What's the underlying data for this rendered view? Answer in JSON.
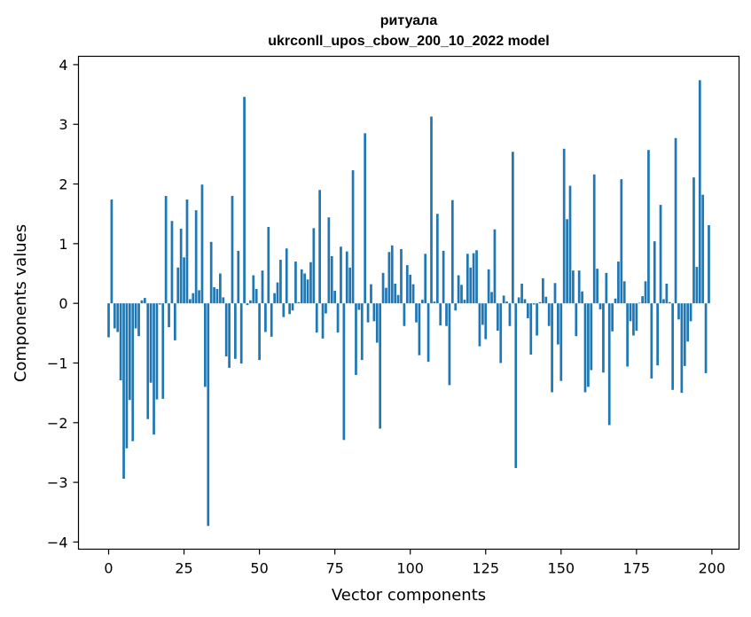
{
  "chart_data": {
    "type": "bar",
    "title_line1": "ритуала",
    "title_line2": "ukrconll_upos_cbow_200_10_2022 model",
    "xlabel": "Vector components",
    "ylabel": "Components values",
    "xlim": [
      -10,
      209
    ],
    "ylim": [
      -4.12,
      4.14
    ],
    "xticks": [
      0,
      25,
      50,
      75,
      100,
      125,
      150,
      175,
      200
    ],
    "yticks": [
      -4,
      -3,
      -2,
      -1,
      0,
      1,
      2,
      3,
      4
    ],
    "xtick_labels": [
      "0",
      "25",
      "50",
      "75",
      "100",
      "125",
      "150",
      "175",
      "200"
    ],
    "ytick_labels": [
      "−4",
      "−3",
      "−2",
      "−1",
      "0",
      "1",
      "2",
      "3",
      "4"
    ],
    "grid": false,
    "bar_color": "#1f77b4",
    "x": [
      0,
      1,
      2,
      3,
      4,
      5,
      6,
      7,
      8,
      9,
      10,
      11,
      12,
      13,
      14,
      15,
      16,
      17,
      18,
      19,
      20,
      21,
      22,
      23,
      24,
      25,
      26,
      27,
      28,
      29,
      30,
      31,
      32,
      33,
      34,
      35,
      36,
      37,
      38,
      39,
      40,
      41,
      42,
      43,
      44,
      45,
      46,
      47,
      48,
      49,
      50,
      51,
      52,
      53,
      54,
      55,
      56,
      57,
      58,
      59,
      60,
      61,
      62,
      63,
      64,
      65,
      66,
      67,
      68,
      69,
      70,
      71,
      72,
      73,
      74,
      75,
      76,
      77,
      78,
      79,
      80,
      81,
      82,
      83,
      84,
      85,
      86,
      87,
      88,
      89,
      90,
      91,
      92,
      93,
      94,
      95,
      96,
      97,
      98,
      99,
      100,
      101,
      102,
      103,
      104,
      105,
      106,
      107,
      108,
      109,
      110,
      111,
      112,
      113,
      114,
      115,
      116,
      117,
      118,
      119,
      120,
      121,
      122,
      123,
      124,
      125,
      126,
      127,
      128,
      129,
      130,
      131,
      132,
      133,
      134,
      135,
      136,
      137,
      138,
      139,
      140,
      141,
      142,
      143,
      144,
      145,
      146,
      147,
      148,
      149,
      150,
      151,
      152,
      153,
      154,
      155,
      156,
      157,
      158,
      159,
      160,
      161,
      162,
      163,
      164,
      165,
      166,
      167,
      168,
      169,
      170,
      171,
      172,
      173,
      174,
      175,
      176,
      177,
      178,
      179,
      180,
      181,
      182,
      183,
      184,
      185,
      186,
      187,
      188,
      189,
      190,
      191,
      192,
      193,
      194,
      195,
      196,
      197,
      198,
      199
    ],
    "values": [
      -0.57,
      1.74,
      -0.42,
      -0.48,
      -1.29,
      -2.94,
      -2.43,
      -1.62,
      -2.31,
      -0.42,
      -0.55,
      0.05,
      0.09,
      -1.94,
      -1.33,
      -2.2,
      -1.61,
      -0.02,
      -1.6,
      1.8,
      -0.4,
      1.38,
      -0.62,
      0.6,
      1.25,
      0.77,
      1.74,
      0.07,
      0.17,
      1.56,
      0.22,
      1.99,
      -1.4,
      -3.73,
      1.03,
      0.27,
      0.24,
      0.5,
      0.1,
      -0.89,
      -1.08,
      1.8,
      -0.93,
      0.88,
      -1.01,
      3.46,
      -0.03,
      0.05,
      0.47,
      0.24,
      -0.95,
      0.55,
      -0.48,
      1.28,
      -0.56,
      0.17,
      0.35,
      0.73,
      -0.23,
      0.92,
      -0.18,
      -0.12,
      0.7,
      0.02,
      0.57,
      0.5,
      0.4,
      0.69,
      1.26,
      -0.49,
      1.9,
      -0.59,
      -0.17,
      1.44,
      0.79,
      0.21,
      -0.49,
      0.95,
      -2.29,
      0.87,
      0.6,
      2.23,
      -1.2,
      -0.11,
      -0.95,
      2.85,
      -0.32,
      0.32,
      -0.3,
      -0.66,
      -2.1,
      0.51,
      0.26,
      0.86,
      0.97,
      0.33,
      0.14,
      0.91,
      -0.38,
      0.64,
      0.48,
      0.32,
      -0.32,
      -0.87,
      0.06,
      0.83,
      -0.98,
      3.13,
      0.03,
      1.5,
      -0.37,
      0.88,
      -0.38,
      -1.37,
      1.73,
      -0.12,
      0.47,
      0.31,
      0.06,
      0.83,
      0.6,
      0.84,
      0.89,
      -0.72,
      -0.36,
      -0.6,
      0.57,
      0.19,
      1.24,
      -0.46,
      -1.0,
      0.13,
      0.03,
      -0.38,
      2.54,
      -2.76,
      0.1,
      0.33,
      0.07,
      -0.25,
      -0.86,
      -0.02,
      -0.54,
      0.02,
      0.42,
      0.11,
      -0.38,
      -1.49,
      0.34,
      -0.69,
      -1.3,
      2.59,
      1.41,
      1.97,
      0.55,
      -0.55,
      0.55,
      0.2,
      -1.49,
      -1.4,
      -1.12,
      2.16,
      0.58,
      -0.1,
      -1.16,
      0.51,
      -2.04,
      -0.47,
      0.08,
      0.7,
      2.08,
      0.37,
      -1.06,
      -0.3,
      -0.54,
      -0.46,
      0.01,
      0.12,
      0.37,
      2.57,
      -1.26,
      1.04,
      -1.04,
      1.65,
      0.07,
      0.33,
      0.02,
      -1.45,
      2.77,
      -0.27,
      -1.5,
      -1.05,
      -0.64,
      -0.3,
      2.11,
      0.61,
      3.74,
      1.82,
      -1.17,
      1.31
    ]
  }
}
